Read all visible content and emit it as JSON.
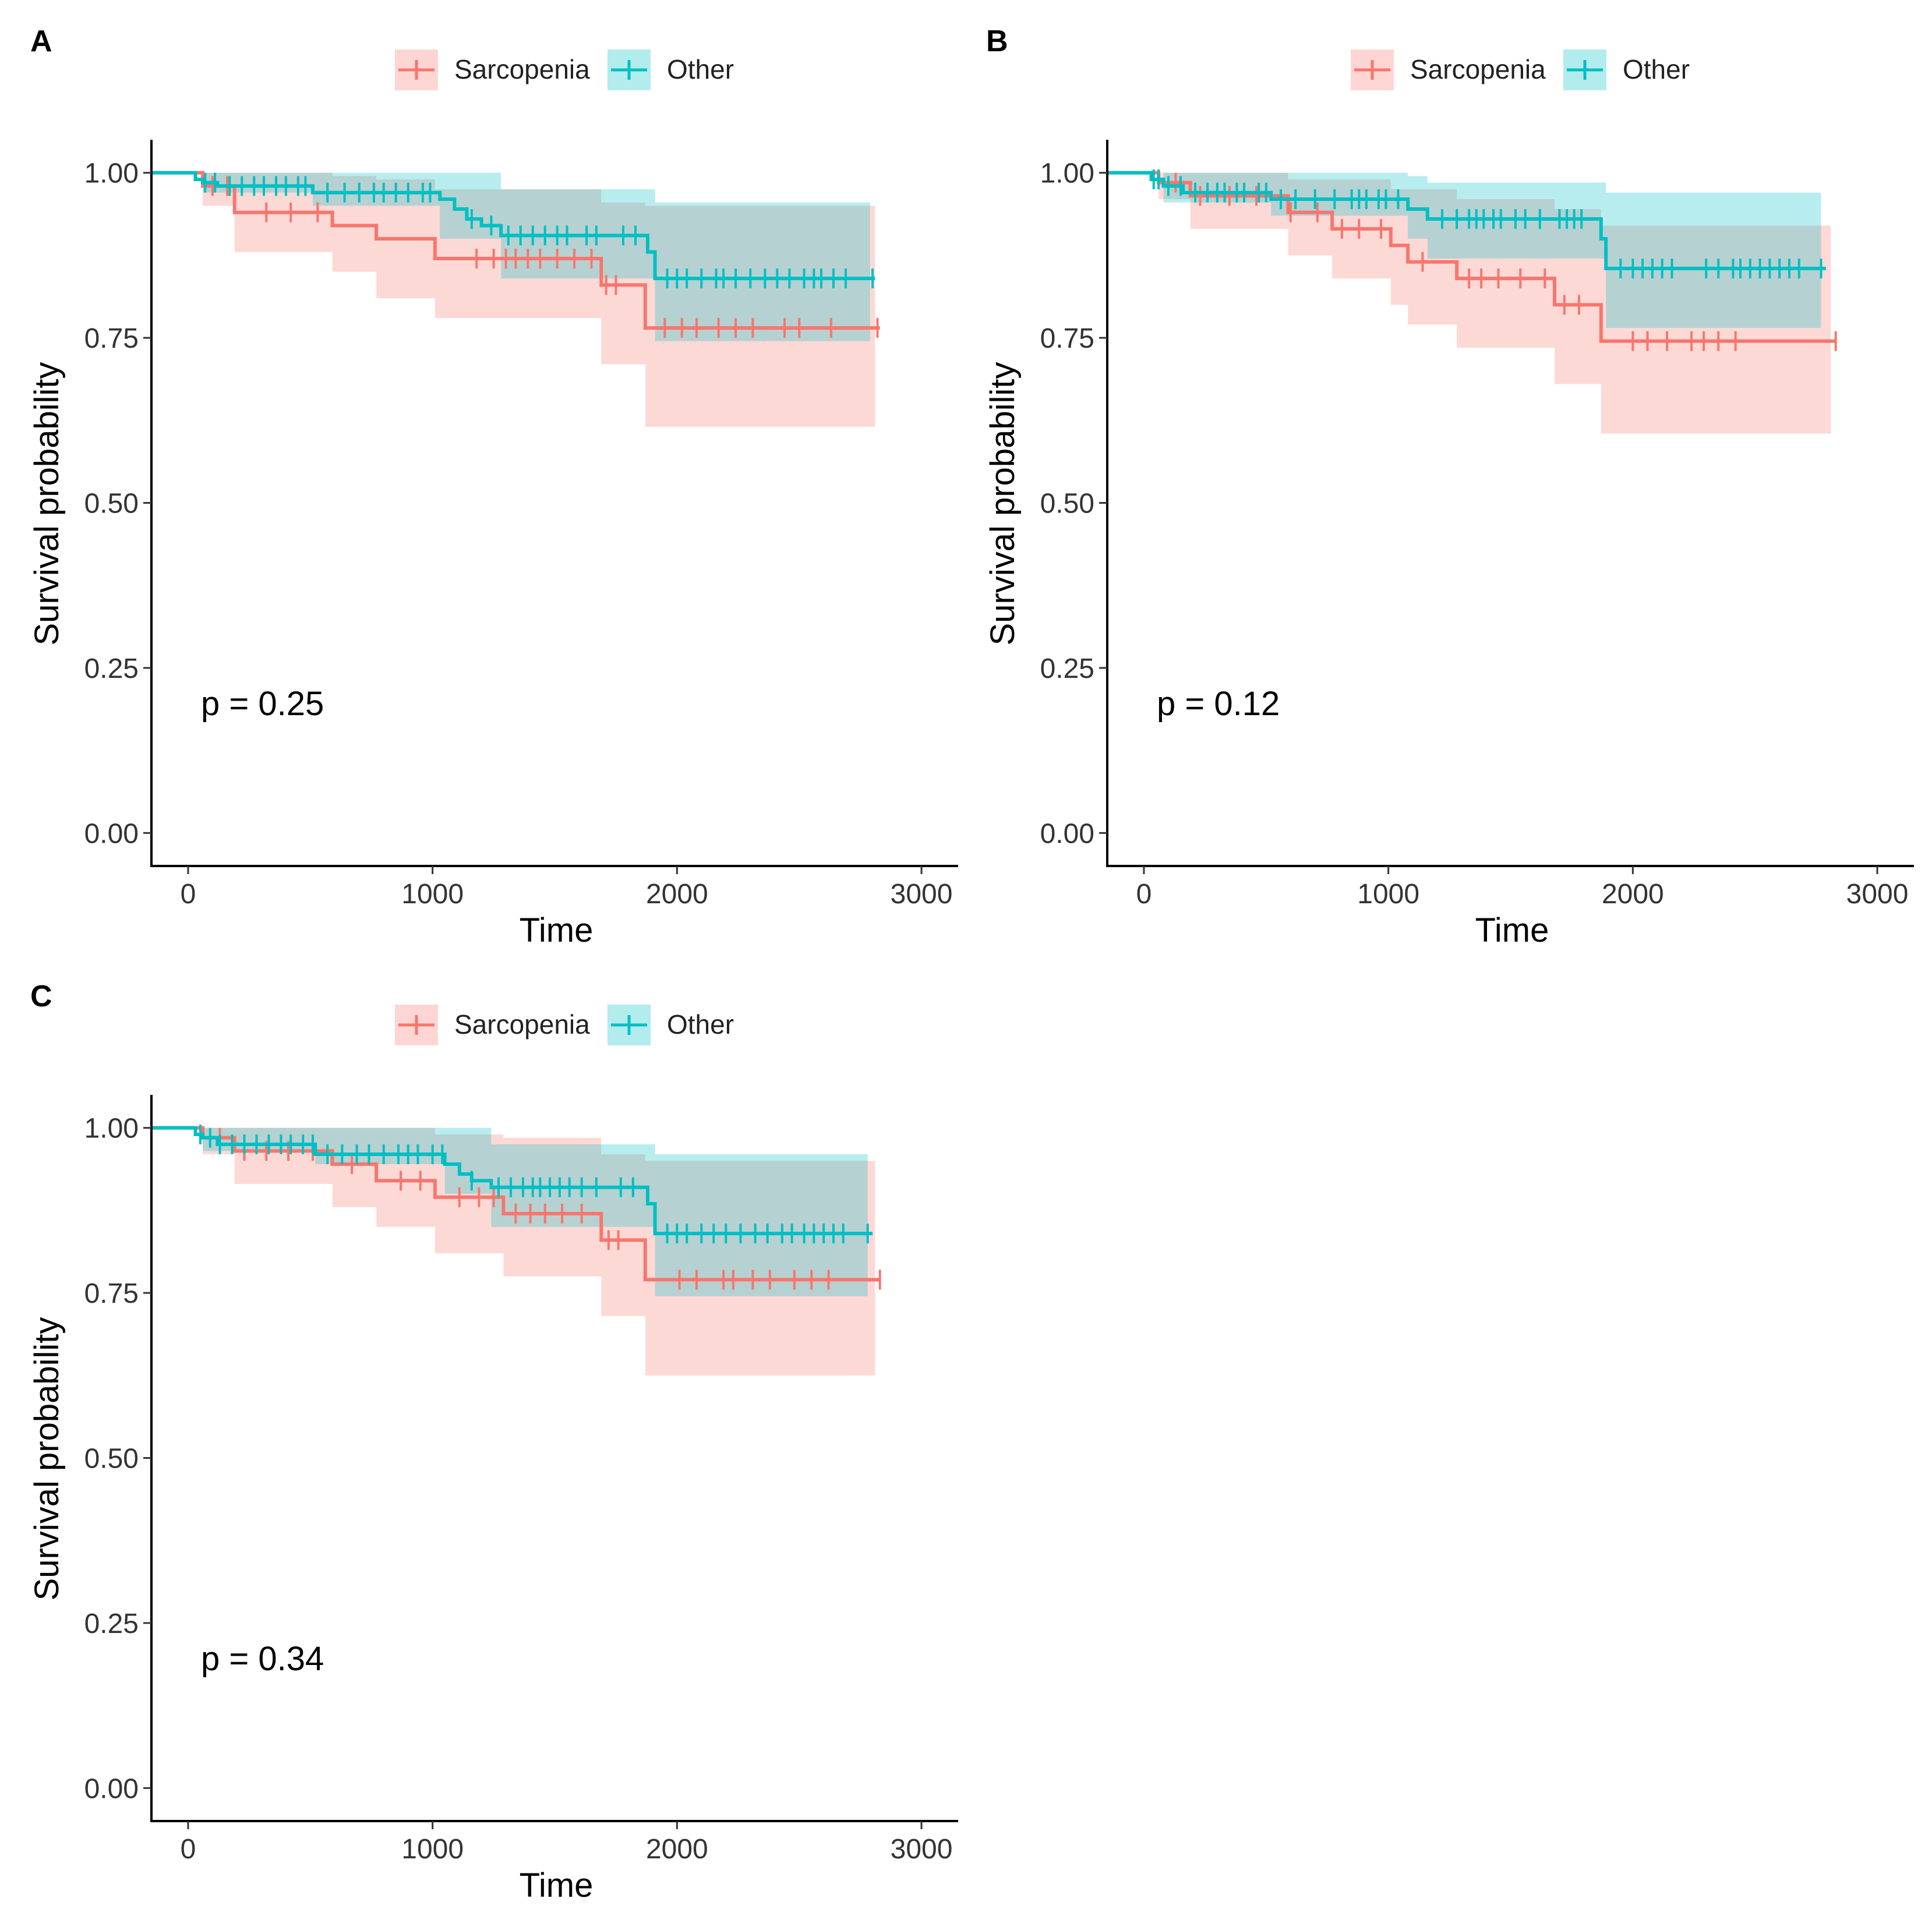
{
  "figure": {
    "legend_labels": [
      "Sarcopenia",
      "Other"
    ],
    "colors": {
      "sarcopenia": "#F8766D",
      "other": "#00BFC4",
      "sarcopenia_band": "#F8766D",
      "other_band": "#00BFC4",
      "axis": "#000000"
    }
  },
  "chart_data": [
    {
      "panel": "A",
      "type": "line",
      "title": "",
      "xlabel": "Time",
      "ylabel": "Survival probability",
      "xlim": [
        -150,
        3150
      ],
      "ylim": [
        -0.05,
        1.05
      ],
      "x_ticks": [
        0,
        1000,
        2000,
        3000
      ],
      "x_tick_labels": [
        "0",
        "1000",
        "2000",
        "3000"
      ],
      "y_ticks": [
        0,
        0.25,
        0.5,
        0.75,
        1
      ],
      "y_tick_labels": [
        "0.00",
        "0.25",
        "0.50",
        "0.75",
        "1.00"
      ],
      "annotation": "p = 0.25",
      "legend_position": "top",
      "series": [
        {
          "name": "Sarcopenia",
          "color": "#F8766D",
          "steps": [
            [
              -150,
              1.0
            ],
            [
              60,
              0.98
            ],
            [
              190,
              0.94
            ],
            [
              590,
              0.92
            ],
            [
              770,
              0.9
            ],
            [
              1010,
              0.87
            ],
            [
              1690,
              0.83
            ],
            [
              1870,
              0.765
            ],
            [
              2830,
              0.765
            ]
          ],
          "lower": [
            [
              -150,
              1.0
            ],
            [
              60,
              0.95
            ],
            [
              190,
              0.88
            ],
            [
              590,
              0.85
            ],
            [
              770,
              0.81
            ],
            [
              1010,
              0.78
            ],
            [
              1690,
              0.71
            ],
            [
              1870,
              0.615
            ],
            [
              2810,
              0.615
            ]
          ],
          "upper": [
            [
              -150,
              1.0
            ],
            [
              60,
              1.0
            ],
            [
              190,
              1.0
            ],
            [
              590,
              0.995
            ],
            [
              770,
              0.99
            ],
            [
              1010,
              0.975
            ],
            [
              1690,
              0.955
            ],
            [
              1870,
              0.95
            ],
            [
              2810,
              0.95
            ]
          ],
          "censors": [
            100,
            160,
            320,
            420,
            530,
            1180,
            1250,
            1300,
            1340,
            1390,
            1440,
            1510,
            1580,
            1650,
            1710,
            1750,
            1950,
            2020,
            2080,
            2170,
            2240,
            2310,
            2440,
            2500,
            2630,
            2820
          ]
        },
        {
          "name": "Other",
          "color": "#00BFC4",
          "steps": [
            [
              -150,
              1.0
            ],
            [
              30,
              0.99
            ],
            [
              60,
              0.985
            ],
            [
              120,
              0.98
            ],
            [
              510,
              0.97
            ],
            [
              1030,
              0.96
            ],
            [
              1090,
              0.945
            ],
            [
              1140,
              0.93
            ],
            [
              1200,
              0.92
            ],
            [
              1280,
              0.905
            ],
            [
              1880,
              0.88
            ],
            [
              1910,
              0.84
            ],
            [
              2810,
              0.84
            ]
          ],
          "lower": [
            [
              -150,
              1.0
            ],
            [
              60,
              0.97
            ],
            [
              510,
              0.95
            ],
            [
              1030,
              0.9
            ],
            [
              1280,
              0.84
            ],
            [
              1910,
              0.745
            ],
            [
              2790,
              0.745
            ]
          ],
          "upper": [
            [
              -150,
              1.0
            ],
            [
              510,
              1.0
            ],
            [
              1030,
              1.0
            ],
            [
              1280,
              0.975
            ],
            [
              1910,
              0.955
            ],
            [
              2790,
              0.955
            ]
          ],
          "censors": [
            70,
            110,
            170,
            220,
            270,
            310,
            360,
            400,
            450,
            480,
            570,
            640,
            700,
            760,
            800,
            850,
            900,
            960,
            990,
            1160,
            1240,
            1310,
            1360,
            1410,
            1460,
            1510,
            1550,
            1630,
            1670,
            1780,
            1830,
            1960,
            2000,
            2040,
            2100,
            2160,
            2190,
            2240,
            2300,
            2360,
            2410,
            2460,
            2520,
            2560,
            2590,
            2640,
            2690,
            2800
          ]
        }
      ]
    },
    {
      "panel": "B",
      "type": "line",
      "title": "",
      "xlabel": "Time",
      "ylabel": "Survival probability",
      "xlim": [
        -150,
        3150
      ],
      "ylim": [
        -0.05,
        1.05
      ],
      "x_ticks": [
        0,
        1000,
        2000,
        3000
      ],
      "x_tick_labels": [
        "0",
        "1000",
        "2000",
        "3000"
      ],
      "y_ticks": [
        0,
        0.25,
        0.5,
        0.75,
        1
      ],
      "y_tick_labels": [
        "0.00",
        "0.25",
        "0.50",
        "0.75",
        "1.00"
      ],
      "annotation": "p = 0.12",
      "legend_position": "top",
      "series": [
        {
          "name": "Sarcopenia",
          "color": "#F8766D",
          "steps": [
            [
              -150,
              1.0
            ],
            [
              60,
              0.985
            ],
            [
              190,
              0.965
            ],
            [
              590,
              0.94
            ],
            [
              770,
              0.915
            ],
            [
              1010,
              0.89
            ],
            [
              1080,
              0.865
            ],
            [
              1280,
              0.84
            ],
            [
              1680,
              0.8
            ],
            [
              1870,
              0.745
            ],
            [
              2830,
              0.745
            ]
          ],
          "lower": [
            [
              -150,
              1.0
            ],
            [
              60,
              0.96
            ],
            [
              190,
              0.915
            ],
            [
              590,
              0.875
            ],
            [
              770,
              0.84
            ],
            [
              1010,
              0.8
            ],
            [
              1080,
              0.77
            ],
            [
              1280,
              0.735
            ],
            [
              1680,
              0.68
            ],
            [
              1870,
              0.605
            ],
            [
              2810,
              0.605
            ]
          ],
          "upper": [
            [
              -150,
              1.0
            ],
            [
              60,
              1.0
            ],
            [
              590,
              0.99
            ],
            [
              1010,
              0.975
            ],
            [
              1280,
              0.96
            ],
            [
              1680,
              0.945
            ],
            [
              1870,
              0.92
            ],
            [
              2810,
              0.92
            ]
          ],
          "censors": [
            130,
            230,
            350,
            460,
            600,
            710,
            810,
            880,
            970,
            1140,
            1330,
            1380,
            1450,
            1540,
            1640,
            1720,
            1780,
            2000,
            2060,
            2140,
            2240,
            2290,
            2350,
            2420,
            2830
          ]
        },
        {
          "name": "Other",
          "color": "#00BFC4",
          "steps": [
            [
              -150,
              1.0
            ],
            [
              30,
              0.99
            ],
            [
              80,
              0.98
            ],
            [
              160,
              0.97
            ],
            [
              520,
              0.96
            ],
            [
              1080,
              0.945
            ],
            [
              1160,
              0.93
            ],
            [
              1870,
              0.9
            ],
            [
              1890,
              0.855
            ],
            [
              2790,
              0.855
            ]
          ],
          "lower": [
            [
              -150,
              1.0
            ],
            [
              80,
              0.955
            ],
            [
              520,
              0.935
            ],
            [
              1080,
              0.9
            ],
            [
              1160,
              0.87
            ],
            [
              1890,
              0.765
            ],
            [
              2770,
              0.765
            ]
          ],
          "upper": [
            [
              -150,
              1.0
            ],
            [
              520,
              1.0
            ],
            [
              1080,
              0.995
            ],
            [
              1160,
              0.985
            ],
            [
              1890,
              0.97
            ],
            [
              2770,
              0.97
            ]
          ],
          "censors": [
            40,
            60,
            100,
            150,
            210,
            260,
            300,
            330,
            380,
            410,
            470,
            500,
            560,
            620,
            700,
            780,
            850,
            880,
            910,
            960,
            990,
            1040,
            1220,
            1280,
            1330,
            1360,
            1390,
            1430,
            1460,
            1520,
            1560,
            1620,
            1700,
            1730,
            1760,
            1790,
            1950,
            2000,
            2040,
            2080,
            2120,
            2160,
            2300,
            2350,
            2410,
            2440,
            2480,
            2520,
            2560,
            2600,
            2640,
            2680,
            2770
          ]
        }
      ]
    },
    {
      "panel": "C",
      "type": "line",
      "title": "",
      "xlabel": "Time",
      "ylabel": "Survival probability",
      "xlim": [
        -150,
        3150
      ],
      "ylim": [
        -0.05,
        1.05
      ],
      "x_ticks": [
        0,
        1000,
        2000,
        3000
      ],
      "x_tick_labels": [
        "0",
        "1000",
        "2000",
        "3000"
      ],
      "y_ticks": [
        0,
        0.25,
        0.5,
        0.75,
        1
      ],
      "y_tick_labels": [
        "0.00",
        "0.25",
        "0.50",
        "0.75",
        "1.00"
      ],
      "annotation": "p = 0.34",
      "legend_position": "top",
      "series": [
        {
          "name": "Sarcopenia",
          "color": "#F8766D",
          "steps": [
            [
              -150,
              1.0
            ],
            [
              60,
              0.985
            ],
            [
              190,
              0.965
            ],
            [
              590,
              0.945
            ],
            [
              770,
              0.92
            ],
            [
              1010,
              0.895
            ],
            [
              1290,
              0.87
            ],
            [
              1690,
              0.83
            ],
            [
              1870,
              0.77
            ],
            [
              2830,
              0.77
            ]
          ],
          "lower": [
            [
              -150,
              1.0
            ],
            [
              60,
              0.96
            ],
            [
              190,
              0.915
            ],
            [
              590,
              0.88
            ],
            [
              770,
              0.85
            ],
            [
              1010,
              0.81
            ],
            [
              1290,
              0.775
            ],
            [
              1690,
              0.715
            ],
            [
              1870,
              0.625
            ],
            [
              2810,
              0.625
            ]
          ],
          "upper": [
            [
              -150,
              1.0
            ],
            [
              60,
              1.0
            ],
            [
              190,
              1.0
            ],
            [
              1010,
              0.99
            ],
            [
              1290,
              0.985
            ],
            [
              1690,
              0.96
            ],
            [
              1870,
              0.95
            ],
            [
              2810,
              0.95
            ]
          ],
          "censors": [
            130,
            230,
            320,
            410,
            510,
            670,
            870,
            950,
            1110,
            1190,
            1250,
            1340,
            1400,
            1460,
            1530,
            1610,
            1720,
            1760,
            2010,
            2080,
            2190,
            2230,
            2310,
            2380,
            2480,
            2550,
            2620,
            2830
          ]
        },
        {
          "name": "Other",
          "color": "#00BFC4",
          "steps": [
            [
              -150,
              1.0
            ],
            [
              30,
              0.99
            ],
            [
              60,
              0.985
            ],
            [
              120,
              0.975
            ],
            [
              520,
              0.96
            ],
            [
              1050,
              0.945
            ],
            [
              1110,
              0.93
            ],
            [
              1160,
              0.92
            ],
            [
              1240,
              0.91
            ],
            [
              1880,
              0.885
            ],
            [
              1910,
              0.84
            ],
            [
              2800,
              0.84
            ]
          ],
          "lower": [
            [
              -150,
              1.0
            ],
            [
              60,
              0.965
            ],
            [
              520,
              0.945
            ],
            [
              1050,
              0.9
            ],
            [
              1240,
              0.85
            ],
            [
              1910,
              0.745
            ],
            [
              2780,
              0.745
            ]
          ],
          "upper": [
            [
              -150,
              1.0
            ],
            [
              520,
              1.0
            ],
            [
              1050,
              1.0
            ],
            [
              1240,
              0.975
            ],
            [
              1910,
              0.96
            ],
            [
              2780,
              0.96
            ]
          ],
          "censors": [
            50,
            90,
            130,
            180,
            230,
            280,
            330,
            380,
            420,
            470,
            510,
            570,
            630,
            690,
            740,
            800,
            860,
            900,
            940,
            1000,
            1040,
            1160,
            1270,
            1320,
            1370,
            1410,
            1440,
            1480,
            1520,
            1560,
            1610,
            1670,
            1770,
            1820,
            1960,
            2000,
            2040,
            2100,
            2150,
            2200,
            2260,
            2320,
            2370,
            2430,
            2470,
            2520,
            2560,
            2600,
            2640,
            2680,
            2780
          ]
        }
      ]
    }
  ]
}
